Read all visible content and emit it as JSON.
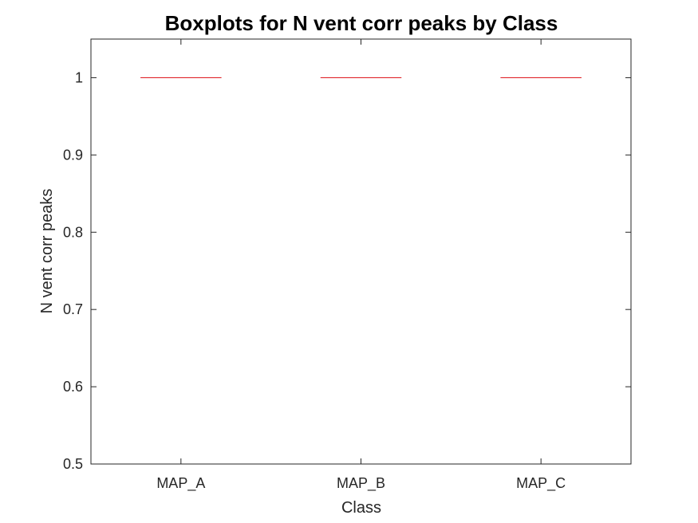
{
  "chart_data": {
    "type": "boxplot",
    "title": "Boxplots for N vent corr peaks by Class",
    "xlabel": "Class",
    "ylabel": "N vent corr peaks",
    "categories": [
      "MAP_A",
      "MAP_B",
      "MAP_C"
    ],
    "median": [
      1,
      1,
      1
    ],
    "q1": [
      1,
      1,
      1
    ],
    "q3": [
      1,
      1,
      1
    ],
    "whisker_low": [
      1,
      1,
      1
    ],
    "whisker_high": [
      1,
      1,
      1
    ],
    "ylim": [
      0.5,
      1.05
    ],
    "yticks": [
      0.5,
      0.6,
      0.7,
      0.8,
      0.9,
      1
    ],
    "ytick_labels": [
      "0.5",
      "0.6",
      "0.7",
      "0.8",
      "0.9",
      "1"
    ],
    "grid": false,
    "colors": {
      "median": "#e0262b",
      "axes": "#262626"
    }
  }
}
